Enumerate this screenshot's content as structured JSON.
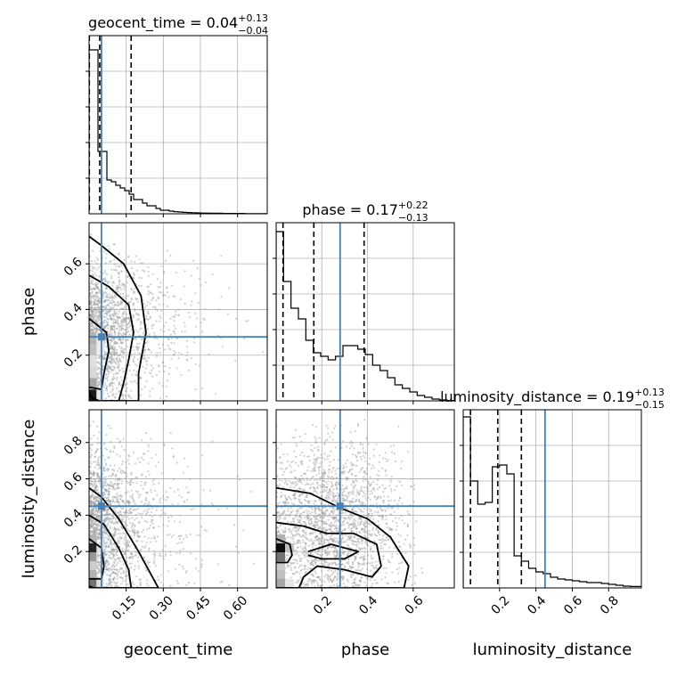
{
  "chart_data": {
    "type": "corner",
    "parameters": [
      "geocent_time",
      "phase",
      "luminosity_distance"
    ],
    "truth_color": "#4682b4",
    "truths": {
      "geocent_time": 0.05,
      "phase": 0.28,
      "luminosity_distance": 0.45
    },
    "axes": {
      "geocent_time": {
        "range": [
          0.0,
          0.72
        ],
        "ticks": [
          0.15,
          0.3,
          0.45,
          0.6
        ],
        "tick_labels": [
          "0.15",
          "0.30",
          "0.45",
          "0.60"
        ]
      },
      "phase": {
        "range": [
          0.0,
          0.78
        ],
        "ticks": [
          0.2,
          0.4,
          0.6
        ],
        "tick_labels": [
          "0.2",
          "0.4",
          "0.6"
        ]
      },
      "luminosity_distance": {
        "range": [
          0.0,
          0.98
        ],
        "ticks": [
          0.2,
          0.4,
          0.6,
          0.8
        ],
        "tick_labels": [
          "0.2",
          "0.4",
          "0.6",
          "0.8"
        ]
      }
    },
    "diagonal": [
      {
        "parameter": "geocent_time",
        "title_prefix": "geocent_time = 0.04",
        "title_plus": "+0.13",
        "title_minus": "−0.04",
        "bin_edges": [
          0.0,
          0.018,
          0.036,
          0.054,
          0.072,
          0.09,
          0.108,
          0.126,
          0.144,
          0.162,
          0.18,
          0.198,
          0.216,
          0.234,
          0.252,
          0.27,
          0.288,
          0.306,
          0.324,
          0.342,
          0.36,
          0.378,
          0.396,
          0.414,
          0.432,
          0.45,
          0.468,
          0.486,
          0.504,
          0.522,
          0.54,
          0.558,
          0.576,
          0.594,
          0.612,
          0.63,
          0.648,
          0.666,
          0.684,
          0.702,
          0.72
        ],
        "counts": [
          0.92,
          0.92,
          0.35,
          0.35,
          0.19,
          0.18,
          0.16,
          0.145,
          0.13,
          0.11,
          0.08,
          0.08,
          0.06,
          0.045,
          0.045,
          0.03,
          0.02,
          0.02,
          0.015,
          0.012,
          0.01,
          0.008,
          0.007,
          0.006,
          0.005,
          0.004,
          0.004,
          0.003,
          0.003,
          0.003,
          0.002,
          0.002,
          0.002,
          0.002,
          0.002,
          0.001,
          0.001,
          0.001,
          0.001,
          0.001
        ],
        "ymax": 1.0,
        "quantiles": [
          0.001,
          0.043,
          0.17
        ]
      },
      {
        "parameter": "phase",
        "title_prefix": "phase = 0.17",
        "title_plus": "+0.22",
        "title_minus": "−0.13",
        "bin_edges": [
          0.0,
          0.0325,
          0.065,
          0.0975,
          0.13,
          0.1625,
          0.195,
          0.2275,
          0.26,
          0.2925,
          0.325,
          0.3575,
          0.39,
          0.4225,
          0.455,
          0.4875,
          0.52,
          0.5525,
          0.585,
          0.6175,
          0.65,
          0.6825,
          0.715,
          0.7475,
          0.78
        ],
        "counts": [
          0.95,
          0.67,
          0.52,
          0.46,
          0.34,
          0.27,
          0.25,
          0.23,
          0.25,
          0.31,
          0.31,
          0.29,
          0.26,
          0.2,
          0.17,
          0.13,
          0.09,
          0.07,
          0.05,
          0.03,
          0.02,
          0.01,
          0.005,
          0.002
        ],
        "ymax": 1.0,
        "quantiles": [
          0.03,
          0.165,
          0.385
        ]
      },
      {
        "parameter": "luminosity_distance",
        "title_prefix": "luminosity_distance = 0.19",
        "title_plus": "+0.13",
        "title_minus": "−0.15",
        "bin_edges": [
          0.0,
          0.04,
          0.08,
          0.12,
          0.16,
          0.2,
          0.24,
          0.28,
          0.32,
          0.36,
          0.4,
          0.44,
          0.48,
          0.52,
          0.56,
          0.6,
          0.64,
          0.68,
          0.72,
          0.76,
          0.8,
          0.84,
          0.88,
          0.92,
          0.98
        ],
        "counts": [
          0.96,
          0.6,
          0.47,
          0.48,
          0.68,
          0.69,
          0.64,
          0.18,
          0.15,
          0.11,
          0.09,
          0.08,
          0.06,
          0.05,
          0.045,
          0.04,
          0.035,
          0.03,
          0.03,
          0.025,
          0.02,
          0.015,
          0.01,
          0.008
        ],
        "ymax": 1.0,
        "quantiles": [
          0.04,
          0.19,
          0.32
        ]
      }
    ],
    "panels_2d": [
      {
        "x": "geocent_time",
        "y": "phase",
        "contours": [
          [
            [
              0.0,
              0.72
            ],
            [
              0.05,
              0.68
            ],
            [
              0.14,
              0.6
            ],
            [
              0.21,
              0.46
            ],
            [
              0.23,
              0.3
            ],
            [
              0.2,
              0.12
            ],
            [
              0.2,
              0.0
            ],
            [
              0.04,
              0.0
            ],
            [
              0.0,
              0.02
            ]
          ],
          [
            [
              0.0,
              0.55
            ],
            [
              0.08,
              0.5
            ],
            [
              0.16,
              0.42
            ],
            [
              0.18,
              0.3
            ],
            [
              0.16,
              0.18
            ],
            [
              0.14,
              0.08
            ],
            [
              0.12,
              0.0
            ],
            [
              0.02,
              0.0
            ],
            [
              0.0,
              0.04
            ]
          ],
          [
            [
              0.0,
              0.36
            ],
            [
              0.07,
              0.3
            ],
            [
              0.08,
              0.22
            ],
            [
              0.06,
              0.12
            ],
            [
              0.05,
              0.05
            ],
            [
              0.0,
              0.06
            ]
          ]
        ],
        "density_cells": [
          {
            "x": 0.0,
            "y": 0.0,
            "w": 0.03,
            "h": 0.05,
            "level": 0.9
          },
          {
            "x": 0.0,
            "y": 0.05,
            "w": 0.03,
            "h": 0.05,
            "level": 0.35
          },
          {
            "x": 0.0,
            "y": 0.1,
            "w": 0.03,
            "h": 0.05,
            "level": 0.15
          },
          {
            "x": 0.0,
            "y": 0.15,
            "w": 0.03,
            "h": 0.05,
            "level": 0.12
          },
          {
            "x": 0.0,
            "y": 0.2,
            "w": 0.03,
            "h": 0.05,
            "level": 0.25
          },
          {
            "x": 0.0,
            "y": 0.25,
            "w": 0.03,
            "h": 0.05,
            "level": 0.3
          },
          {
            "x": 0.03,
            "y": 0.0,
            "w": 0.03,
            "h": 0.05,
            "level": 0.1
          },
          {
            "x": 0.03,
            "y": 0.2,
            "w": 0.03,
            "h": 0.05,
            "level": 0.08
          },
          {
            "x": 0.03,
            "y": 0.25,
            "w": 0.03,
            "h": 0.05,
            "level": 0.08
          }
        ],
        "scatter": {
          "count": 1800,
          "x_decay": 0.11,
          "y_center": 0.3,
          "y_spread": 0.25,
          "seed": 11
        }
      },
      {
        "x": "geocent_time",
        "y": "luminosity_distance",
        "contours": [
          [
            [
              0.0,
              0.55
            ],
            [
              0.05,
              0.5
            ],
            [
              0.12,
              0.38
            ],
            [
              0.2,
              0.2
            ],
            [
              0.28,
              0.0
            ],
            [
              0.02,
              0.0
            ],
            [
              0.0,
              0.01
            ]
          ],
          [
            [
              0.0,
              0.4
            ],
            [
              0.06,
              0.35
            ],
            [
              0.12,
              0.22
            ],
            [
              0.16,
              0.1
            ],
            [
              0.17,
              0.0
            ],
            [
              0.0,
              0.0
            ]
          ],
          [
            [
              0.0,
              0.27
            ],
            [
              0.05,
              0.22
            ],
            [
              0.06,
              0.12
            ],
            [
              0.05,
              0.05
            ],
            [
              0.0,
              0.05
            ]
          ]
        ],
        "density_cells": [
          {
            "x": 0.0,
            "y": 0.0,
            "w": 0.03,
            "h": 0.049,
            "level": 0.55
          },
          {
            "x": 0.0,
            "y": 0.049,
            "w": 0.03,
            "h": 0.049,
            "level": 0.3
          },
          {
            "x": 0.0,
            "y": 0.098,
            "w": 0.03,
            "h": 0.049,
            "level": 0.2
          },
          {
            "x": 0.0,
            "y": 0.147,
            "w": 0.03,
            "h": 0.049,
            "level": 0.4
          },
          {
            "x": 0.0,
            "y": 0.196,
            "w": 0.03,
            "h": 0.049,
            "level": 0.85
          },
          {
            "x": 0.0,
            "y": 0.245,
            "w": 0.03,
            "h": 0.049,
            "level": 0.3
          },
          {
            "x": 0.03,
            "y": 0.0,
            "w": 0.03,
            "h": 0.049,
            "level": 0.12
          },
          {
            "x": 0.03,
            "y": 0.196,
            "w": 0.03,
            "h": 0.049,
            "level": 0.12
          }
        ],
        "scatter": {
          "count": 1800,
          "x_decay": 0.11,
          "y_center": 0.35,
          "y_spread": 0.35,
          "seed": 23
        }
      },
      {
        "x": "phase",
        "y": "luminosity_distance",
        "contours": [
          [
            [
              0.0,
              0.55
            ],
            [
              0.15,
              0.52
            ],
            [
              0.28,
              0.44
            ],
            [
              0.4,
              0.38
            ],
            [
              0.5,
              0.28
            ],
            [
              0.58,
              0.12
            ],
            [
              0.56,
              0.0
            ],
            [
              0.0,
              0.0
            ]
          ],
          [
            [
              0.0,
              0.36
            ],
            [
              0.12,
              0.34
            ],
            [
              0.22,
              0.3
            ],
            [
              0.34,
              0.3
            ],
            [
              0.44,
              0.24
            ],
            [
              0.46,
              0.12
            ],
            [
              0.42,
              0.06
            ],
            [
              0.3,
              0.1
            ],
            [
              0.18,
              0.12
            ],
            [
              0.12,
              0.06
            ],
            [
              0.1,
              0.0
            ],
            [
              0.0,
              0.0
            ]
          ],
          [
            [
              0.14,
              0.2
            ],
            [
              0.24,
              0.24
            ],
            [
              0.36,
              0.2
            ],
            [
              0.3,
              0.16
            ],
            [
              0.2,
              0.16
            ],
            [
              0.14,
              0.18
            ]
          ],
          [
            [
              0.0,
              0.27
            ],
            [
              0.06,
              0.24
            ],
            [
              0.07,
              0.18
            ],
            [
              0.05,
              0.14
            ],
            [
              0.0,
              0.14
            ]
          ]
        ],
        "density_cells": [
          {
            "x": 0.0,
            "y": 0.0,
            "w": 0.039,
            "h": 0.049,
            "level": 0.35
          },
          {
            "x": 0.0,
            "y": 0.049,
            "w": 0.039,
            "h": 0.049,
            "level": 0.25
          },
          {
            "x": 0.0,
            "y": 0.098,
            "w": 0.039,
            "h": 0.049,
            "level": 0.2
          },
          {
            "x": 0.0,
            "y": 0.147,
            "w": 0.039,
            "h": 0.049,
            "level": 0.55
          },
          {
            "x": 0.0,
            "y": 0.196,
            "w": 0.039,
            "h": 0.049,
            "level": 0.95
          },
          {
            "x": 0.0,
            "y": 0.245,
            "w": 0.039,
            "h": 0.049,
            "level": 0.3
          },
          {
            "x": 0.039,
            "y": 0.196,
            "w": 0.039,
            "h": 0.049,
            "level": 0.25
          },
          {
            "x": 0.039,
            "y": 0.0,
            "w": 0.039,
            "h": 0.049,
            "level": 0.1
          }
        ],
        "scatter": {
          "count": 2200,
          "x_center": 0.25,
          "x_spread": 0.3,
          "y_center": 0.35,
          "y_spread": 0.35,
          "seed": 37
        }
      }
    ],
    "grid": true,
    "legend": "none"
  }
}
